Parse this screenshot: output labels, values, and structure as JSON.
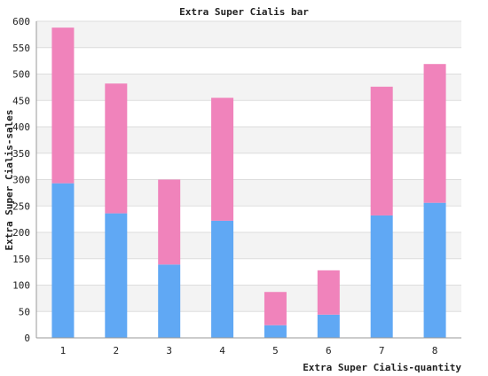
{
  "chart_data": {
    "type": "bar",
    "stacked": true,
    "title": "Extra Super Cialis bar",
    "xlabel": "Extra Super Cialis-quantity",
    "ylabel": "Extra Super Cialis-sales",
    "categories": [
      "1",
      "2",
      "3",
      "4",
      "5",
      "6",
      "7",
      "8"
    ],
    "series": [
      {
        "values": [
          293,
          236,
          139,
          222,
          24,
          44,
          232,
          256
        ],
        "color": "#60a8f4"
      },
      {
        "values": [
          295,
          246,
          161,
          233,
          63,
          84,
          244,
          263
        ],
        "color": "#f083bb"
      }
    ],
    "ylim": [
      0,
      600
    ],
    "yticks": [
      0,
      50,
      100,
      150,
      200,
      250,
      300,
      350,
      400,
      450,
      500,
      550,
      600
    ],
    "grid": true,
    "band_colors": [
      "#f3f3f3",
      "#ffffff"
    ]
  }
}
